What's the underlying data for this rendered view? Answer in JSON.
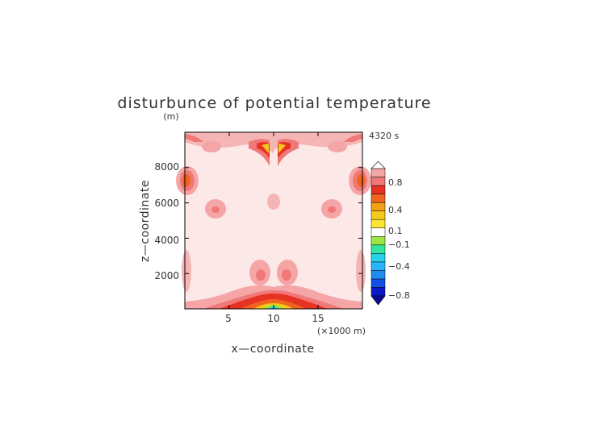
{
  "chart_data": {
    "type": "heatmap",
    "title": "disturbunce of potential temperature",
    "time_label": "4320 s",
    "xlabel": "x—coordinate",
    "ylabel": "z—coordinate",
    "y_unit": "(m)",
    "x_unit": "(×1000 m)",
    "xlim": [
      0,
      20
    ],
    "ylim": [
      0,
      10000
    ],
    "x_ticks": [
      "5",
      "10",
      "15"
    ],
    "y_ticks": [
      "2000",
      "4000",
      "6000",
      "8000"
    ],
    "colorbar": {
      "labels": [
        "0.8",
        "0.4",
        "0.1",
        "−0.1",
        "−0.4",
        "−0.8"
      ],
      "levels": [
        -1.0,
        -0.8,
        -0.6,
        -0.4,
        -0.3,
        -0.2,
        -0.1,
        -0.05,
        0.05,
        0.1,
        0.2,
        0.3,
        0.4,
        0.6,
        0.8,
        1.0
      ],
      "colors": [
        "#0a18c8",
        "#1450e6",
        "#1e8cf0",
        "#28b4ff",
        "#28d2e6",
        "#32e6a0",
        "#9be641",
        "#ffffff",
        "#fae632",
        "#f5c81e",
        "#f5a014",
        "#f0641e",
        "#e63223",
        "#f07878",
        "#f5a5a5"
      ],
      "below_color": "#0a0a96",
      "above_color": "#ffffff"
    },
    "background_color": "#fde8e8"
  }
}
